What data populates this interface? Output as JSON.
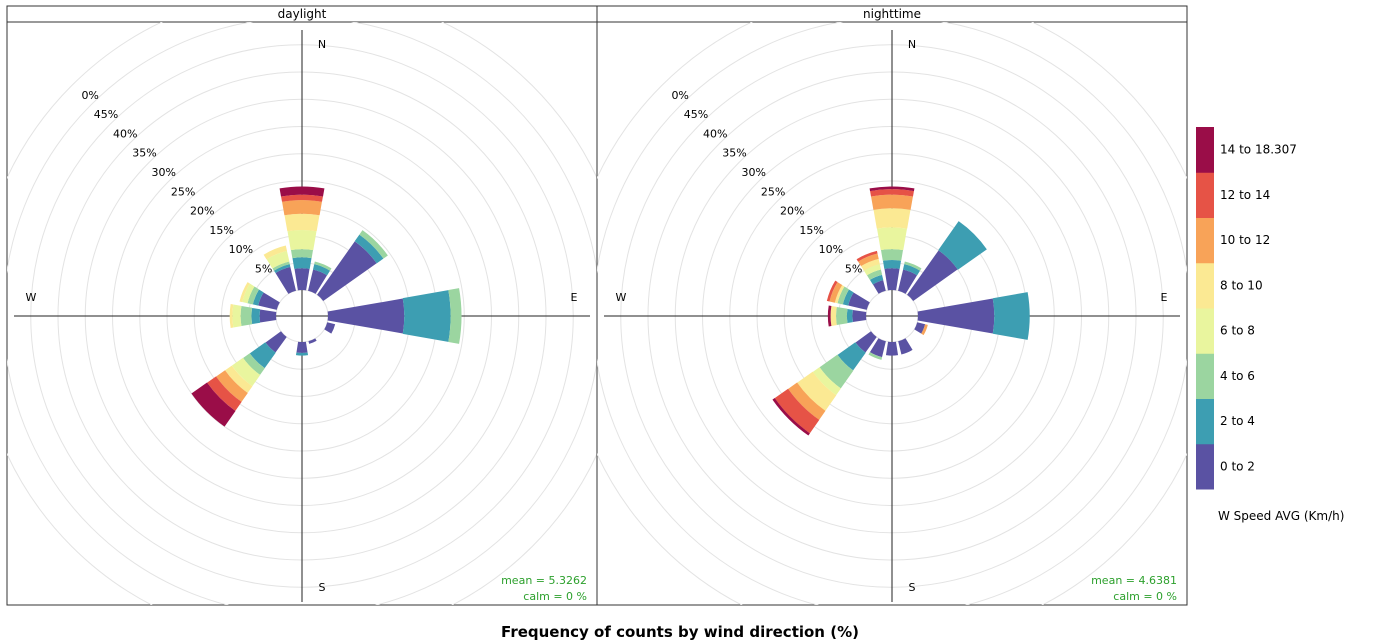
{
  "chart_data": {
    "type": "windrose",
    "title": "Frequency of counts by wind direction (%)",
    "directions": [
      "N",
      "NNE",
      "NE",
      "ENE",
      "E",
      "ESE",
      "SE",
      "SSE",
      "S",
      "SSW",
      "SW",
      "WSW",
      "W",
      "WNW",
      "NW",
      "NNW"
    ],
    "direction_labels": {
      "N": "N",
      "E": "E",
      "S": "S",
      "W": "W"
    },
    "radial_ticks": [
      "5%",
      "10%",
      "15%",
      "20%",
      "25%",
      "30%",
      "35%",
      "40%",
      "45%",
      "0%"
    ],
    "radial_max": 50,
    "speed_bins": [
      "0 to 2",
      "2 to 4",
      "4 to 6",
      "6 to 8",
      "8 to 10",
      "10 to 12",
      "12 to 14",
      "14 to 18.307"
    ],
    "colors": [
      "#5e4fa2",
      "#3288bd",
      "#99d594",
      "#e6f598",
      "#fee08b",
      "#fdae61",
      "#f46d43",
      "#9e0142"
    ],
    "colors_display": [
      "#5a52a3",
      "#3d9eb2",
      "#9bd5a0",
      "#e9f59e",
      "#fbe993",
      "#f8a358",
      "#e65346",
      "#9a0d48"
    ],
    "legend_title": "W Speed AVG (Km/h)",
    "panels": [
      {
        "name": "daylight",
        "mean": "mean = 5.3262",
        "calm": "calm = 0 %",
        "cumulative": [
          [
            4,
            6,
            7.5,
            11,
            14,
            16.5,
            17.5,
            19
          ],
          [
            4,
            5,
            5.5,
            5.5,
            5.5,
            5.5,
            5.5,
            5.5
          ],
          [
            12,
            13.5,
            14.5,
            14.5,
            14.5,
            14.5,
            14.5,
            14.5
          ],
          [
            0,
            0,
            0,
            0,
            0,
            0,
            0,
            0
          ],
          [
            14,
            22.5,
            24.5,
            24.5,
            24.5,
            24.5,
            24.5,
            24.5
          ],
          [
            1.5,
            1.5,
            1.5,
            1.5,
            1.5,
            1.5,
            1.5,
            1.5
          ],
          [
            0,
            0,
            0,
            0,
            0,
            0,
            0,
            0
          ],
          [
            0.5,
            0.5,
            0.5,
            0.5,
            0.5,
            0.5,
            0.5,
            0.5
          ],
          [
            2,
            2.5,
            2.5,
            2.5,
            2.5,
            2.5,
            2.5,
            2.5
          ],
          [
            0,
            0,
            0,
            0,
            0,
            0,
            0,
            0
          ],
          [
            3.5,
            7,
            8.5,
            11,
            12.5,
            14.5,
            16.5,
            20
          ],
          [
            0,
            0,
            0,
            0,
            0,
            0,
            0,
            0
          ],
          [
            3,
            4.5,
            6.5,
            8,
            8.5,
            8.5,
            8.5,
            8.5
          ],
          [
            3.5,
            4.5,
            5.5,
            6.5,
            7,
            7,
            7,
            7
          ],
          [
            0,
            0,
            0,
            0,
            0,
            0,
            0,
            0
          ],
          [
            4.5,
            5,
            5.5,
            7.5,
            8.5,
            8.5,
            8.5,
            8.5
          ]
        ]
      },
      {
        "name": "nighttime",
        "mean": "mean = 4.6381",
        "calm": "calm = 0 %",
        "cumulative": [
          [
            4,
            5.5,
            7.5,
            11.5,
            15,
            17.5,
            18.5,
            19
          ],
          [
            4,
            5,
            5.5,
            5.5,
            5.5,
            5.5,
            5.5,
            5.5
          ],
          [
            10,
            16.5,
            16.5,
            16.5,
            16.5,
            16.5,
            16.5,
            16.5
          ],
          [
            0,
            0,
            0,
            0,
            0,
            0,
            0,
            0
          ],
          [
            14,
            20.5,
            20.5,
            20.5,
            20.5,
            20.5,
            20.5,
            20.5
          ],
          [
            1.5,
            1.5,
            1.5,
            1.5,
            1.5,
            2,
            2,
            2
          ],
          [
            0,
            0,
            0,
            0,
            0,
            0,
            0,
            0
          ],
          [
            2.5,
            2.5,
            2.5,
            2.5,
            2.5,
            2.5,
            2.5,
            2.5
          ],
          [
            2.5,
            2.5,
            2.5,
            2.5,
            2.5,
            2.5,
            2.5,
            2.5
          ],
          [
            3,
            3,
            3.5,
            3.5,
            3.5,
            3.5,
            3.5,
            3.5
          ],
          [
            3.5,
            7.5,
            11.5,
            13,
            16.5,
            18.5,
            21.5,
            22
          ],
          [
            0,
            0,
            0,
            0,
            0,
            0,
            0,
            0
          ],
          [
            2.5,
            3.5,
            5.5,
            5.5,
            6.5,
            6.5,
            6.5,
            7
          ],
          [
            3.5,
            4.5,
            5.5,
            5.5,
            6,
            7,
            7.5,
            7.5
          ],
          [
            0,
            0,
            0,
            0,
            0,
            0,
            0,
            0
          ],
          [
            2,
            3,
            4,
            5,
            6,
            7,
            7.5,
            7.5
          ]
        ]
      }
    ]
  }
}
